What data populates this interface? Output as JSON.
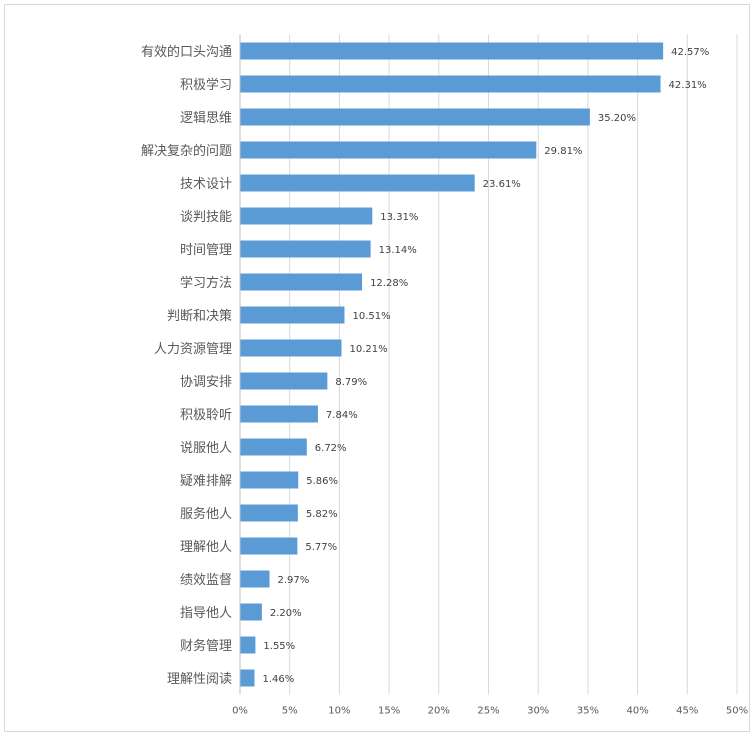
{
  "chart_data": {
    "type": "bar",
    "orientation": "horizontal",
    "categories": [
      "有效的口头沟通",
      "积极学习",
      "逻辑思维",
      "解决复杂的问题",
      "技术设计",
      "谈判技能",
      "时间管理",
      "学习方法",
      "判断和决策",
      "人力资源管理",
      "协调安排",
      "积极聆听",
      "说服他人",
      "疑难排解",
      "服务他人",
      "理解他人",
      "绩效监督",
      "指导他人",
      "财务管理",
      "理解性阅读"
    ],
    "values": [
      42.57,
      42.31,
      35.2,
      29.81,
      23.61,
      13.31,
      13.14,
      12.28,
      10.51,
      10.21,
      8.79,
      7.84,
      6.72,
      5.86,
      5.82,
      5.77,
      2.97,
      2.2,
      1.55,
      1.46
    ],
    "value_labels": [
      "42.57%",
      "42.31%",
      "35.20%",
      "29.81%",
      "23.61%",
      "13.31%",
      "13.14%",
      "12.28%",
      "10.51%",
      "10.21%",
      "8.79%",
      "7.84%",
      "6.72%",
      "5.86%",
      "5.82%",
      "5.77%",
      "2.97%",
      "2.20%",
      "1.55%",
      "1.46%"
    ],
    "x_ticks": [
      "0%",
      "5%",
      "10%",
      "15%",
      "20%",
      "25%",
      "30%",
      "35%",
      "40%",
      "45%",
      "50%"
    ],
    "xlim": [
      0,
      50
    ],
    "title": "",
    "xlabel": "",
    "ylabel": "",
    "grid": true,
    "legend": "none",
    "bar_color": "#5b9bd5",
    "grid_color": "#d9d9d9"
  }
}
